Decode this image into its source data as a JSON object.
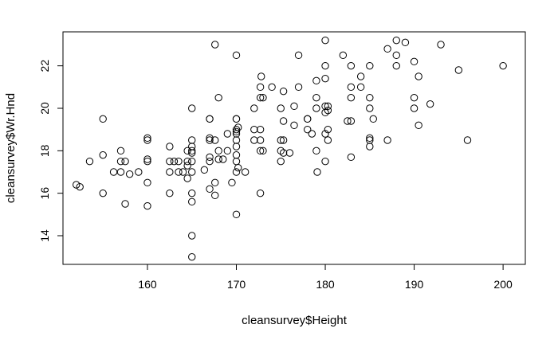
{
  "chart_data": {
    "type": "scatter",
    "title": "",
    "xlabel": "cleansurvey$Height",
    "ylabel": "cleansurvey$Wr.Hnd",
    "xlim": [
      150.5,
      202.5
    ],
    "ylim": [
      12.65,
      23.6
    ],
    "xticks": [
      "160",
      "170",
      "180",
      "190",
      "200"
    ],
    "yticks": [
      "14",
      "16",
      "18",
      "20",
      "22"
    ],
    "xtick_values": [
      160,
      170,
      180,
      190,
      200
    ],
    "ytick_values": [
      14,
      16,
      18,
      20,
      22
    ],
    "grid": false,
    "marker": "open-circle",
    "color": "#000000",
    "points": [
      [
        152.0,
        16.4
      ],
      [
        152.4,
        16.3
      ],
      [
        153.5,
        17.5
      ],
      [
        155.0,
        16.0
      ],
      [
        155.0,
        17.8
      ],
      [
        155.0,
        19.5
      ],
      [
        156.2,
        17.0
      ],
      [
        157.0,
        17.0
      ],
      [
        157.0,
        18.0
      ],
      [
        157.0,
        17.5
      ],
      [
        157.5,
        17.5
      ],
      [
        157.5,
        15.5
      ],
      [
        158.0,
        16.9
      ],
      [
        159.0,
        17.0
      ],
      [
        160.0,
        18.5
      ],
      [
        160.0,
        18.6
      ],
      [
        160.0,
        17.6
      ],
      [
        160.0,
        17.5
      ],
      [
        160.0,
        16.5
      ],
      [
        160.0,
        15.4
      ],
      [
        162.5,
        17.5
      ],
      [
        162.5,
        18.2
      ],
      [
        162.5,
        17.0
      ],
      [
        162.5,
        16.0
      ],
      [
        163.0,
        17.5
      ],
      [
        163.5,
        17.5
      ],
      [
        163.5,
        17.0
      ],
      [
        164.0,
        17.0
      ],
      [
        164.5,
        17.3
      ],
      [
        164.5,
        18.0
      ],
      [
        164.5,
        17.5
      ],
      [
        164.5,
        16.7
      ],
      [
        165.0,
        20.0
      ],
      [
        165.0,
        18.5
      ],
      [
        165.0,
        18.2
      ],
      [
        165.0,
        18.0
      ],
      [
        165.0,
        17.9
      ],
      [
        165.0,
        17.5
      ],
      [
        165.0,
        17.0
      ],
      [
        165.0,
        16.0
      ],
      [
        165.0,
        15.6
      ],
      [
        165.0,
        14.0
      ],
      [
        165.0,
        13.0
      ],
      [
        166.4,
        17.1
      ],
      [
        167.0,
        19.5
      ],
      [
        167.0,
        19.5
      ],
      [
        167.0,
        18.6
      ],
      [
        167.0,
        18.5
      ],
      [
        167.0,
        17.7
      ],
      [
        167.0,
        17.5
      ],
      [
        167.0,
        16.2
      ],
      [
        167.6,
        23.0
      ],
      [
        167.6,
        18.5
      ],
      [
        167.6,
        16.5
      ],
      [
        167.6,
        15.9
      ],
      [
        168.0,
        20.5
      ],
      [
        168.0,
        18.0
      ],
      [
        168.0,
        17.6
      ],
      [
        168.5,
        17.6
      ],
      [
        169.0,
        18.0
      ],
      [
        169.0,
        18.8
      ],
      [
        169.5,
        16.5
      ],
      [
        170.0,
        22.5
      ],
      [
        170.0,
        19.5
      ],
      [
        170.0,
        19.5
      ],
      [
        170.0,
        19.0
      ],
      [
        170.0,
        18.9
      ],
      [
        170.0,
        18.8
      ],
      [
        170.0,
        18.5
      ],
      [
        170.0,
        18.2
      ],
      [
        170.0,
        17.8
      ],
      [
        170.0,
        17.5
      ],
      [
        170.0,
        17.0
      ],
      [
        170.0,
        15.0
      ],
      [
        170.2,
        19.1
      ],
      [
        170.2,
        17.2
      ],
      [
        171.0,
        17.0
      ],
      [
        172.0,
        18.5
      ],
      [
        172.0,
        19.0
      ],
      [
        172.0,
        20.0
      ],
      [
        172.7,
        21.0
      ],
      [
        172.7,
        20.5
      ],
      [
        172.7,
        19.0
      ],
      [
        172.7,
        18.5
      ],
      [
        172.7,
        18.0
      ],
      [
        172.7,
        16.0
      ],
      [
        172.8,
        21.5
      ],
      [
        173.0,
        20.5
      ],
      [
        173.0,
        18.0
      ],
      [
        174.0,
        21.0
      ],
      [
        175.0,
        20.0
      ],
      [
        175.0,
        18.5
      ],
      [
        175.0,
        18.0
      ],
      [
        175.0,
        17.5
      ],
      [
        175.3,
        20.8
      ],
      [
        175.3,
        19.4
      ],
      [
        175.3,
        18.5
      ],
      [
        175.3,
        17.9
      ],
      [
        176.0,
        17.9
      ],
      [
        176.5,
        20.1
      ],
      [
        176.5,
        19.2
      ],
      [
        177.0,
        22.5
      ],
      [
        177.0,
        21.0
      ],
      [
        178.0,
        19.5
      ],
      [
        178.0,
        19.5
      ],
      [
        178.0,
        19.0
      ],
      [
        178.5,
        18.8
      ],
      [
        179.0,
        21.3
      ],
      [
        179.0,
        20.5
      ],
      [
        179.0,
        20.0
      ],
      [
        179.0,
        18.0
      ],
      [
        179.1,
        17.0
      ],
      [
        180.0,
        23.2
      ],
      [
        180.0,
        22.0
      ],
      [
        180.0,
        21.4
      ],
      [
        180.0,
        20.1
      ],
      [
        180.0,
        19.8
      ],
      [
        180.0,
        18.8
      ],
      [
        180.0,
        17.5
      ],
      [
        180.3,
        20.1
      ],
      [
        180.3,
        19.9
      ],
      [
        180.3,
        19.0
      ],
      [
        180.3,
        18.5
      ],
      [
        182.0,
        22.5
      ],
      [
        182.5,
        19.4
      ],
      [
        182.9,
        22.0
      ],
      [
        182.9,
        21.0
      ],
      [
        182.9,
        20.5
      ],
      [
        182.9,
        19.4
      ],
      [
        182.9,
        17.7
      ],
      [
        184.0,
        21.5
      ],
      [
        184.0,
        21.0
      ],
      [
        185.0,
        22.0
      ],
      [
        185.0,
        20.5
      ],
      [
        185.0,
        20.0
      ],
      [
        185.0,
        18.6
      ],
      [
        185.0,
        18.5
      ],
      [
        185.0,
        18.2
      ],
      [
        185.4,
        19.5
      ],
      [
        187.0,
        22.8
      ],
      [
        187.0,
        18.5
      ],
      [
        188.0,
        23.2
      ],
      [
        188.0,
        22.5
      ],
      [
        188.0,
        22.0
      ],
      [
        189.0,
        23.1
      ],
      [
        190.0,
        22.2
      ],
      [
        190.0,
        20.5
      ],
      [
        190.0,
        20.0
      ],
      [
        190.5,
        21.5
      ],
      [
        190.5,
        19.2
      ],
      [
        191.8,
        20.2
      ],
      [
        193.0,
        23.0
      ],
      [
        195.0,
        21.8
      ],
      [
        196.0,
        18.5
      ],
      [
        200.0,
        22.0
      ]
    ]
  }
}
